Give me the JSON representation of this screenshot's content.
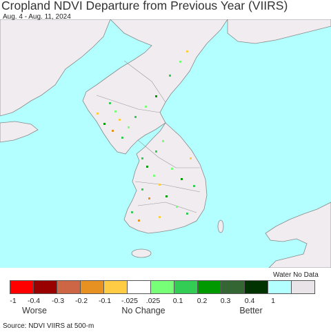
{
  "header": {
    "title": "Cropland NDVI Departure from Previous Year (VIIRS)",
    "date_range": "Aug. 4 - Aug. 11, 2024"
  },
  "map": {
    "water_color": "#b3ffff",
    "land_color": "#f0ecf0",
    "border_color": "#888888"
  },
  "legend": {
    "water_label": "Water No Data",
    "colors": [
      "#ff0000",
      "#990000",
      "#cc6644",
      "#e69122",
      "#ffcc44",
      "#ffffff",
      "#77ff77",
      "#33cc55",
      "#009900",
      "#336633",
      "#003300",
      "#b3ffff",
      "#e8e4e8"
    ],
    "tick_labels": [
      "-1",
      "-0.4",
      "-0.3",
      "-0.2",
      "-0.1",
      "-.025",
      ".025",
      "0.1",
      "0.2",
      "0.3",
      "0.4",
      "1"
    ],
    "categories": [
      "Worse",
      "No Change",
      "Better"
    ]
  },
  "footer": {
    "source": "Source: NDVI VIIRS at 500-m"
  }
}
